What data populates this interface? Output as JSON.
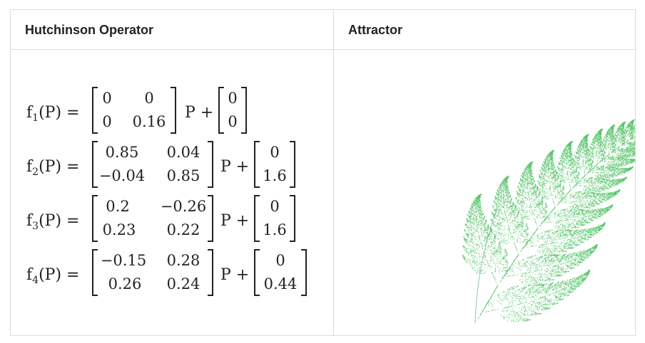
{
  "headers": {
    "left": "Hutchinson Operator",
    "right": "Attractor"
  },
  "equations": [
    {
      "fname": "f",
      "sub": "1",
      "arg": "(P) =",
      "m": [
        "0",
        "0",
        "0",
        "0.16"
      ],
      "p_plus": "P +",
      "v": [
        "0",
        "0"
      ]
    },
    {
      "fname": "f",
      "sub": "2",
      "arg": "(P) =",
      "m": [
        "0.85",
        "0.04",
        "−0.04",
        "0.85"
      ],
      "p_plus": "P +",
      "v": [
        "0",
        "1.6"
      ]
    },
    {
      "fname": "f",
      "sub": "3",
      "arg": "(P) =",
      "m": [
        "0.2",
        "−0.26",
        "0.23",
        "0.22"
      ],
      "p_plus": "P +",
      "v": [
        "0",
        "1.6"
      ]
    },
    {
      "fname": "f",
      "sub": "4",
      "arg": "(P) =",
      "m": [
        "−0.15",
        "0.28",
        "0.26",
        "0.24"
      ],
      "p_plus": "P +",
      "v": [
        "0",
        "0.44"
      ]
    }
  ],
  "colors": {
    "fern": "#1fb33a",
    "stem": "#2a8a7a",
    "border": "#dcdcdc"
  }
}
